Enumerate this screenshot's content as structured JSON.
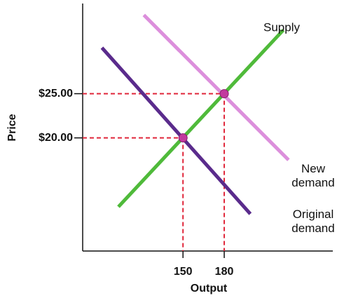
{
  "chart_data": {
    "type": "line",
    "xlabel": "Output",
    "ylabel": "Price",
    "xlim": [
      77,
      259
    ],
    "ylim": [
      7.2,
      35.2
    ],
    "xticks": [
      150,
      180
    ],
    "yticks": [
      {
        "value": 20,
        "label": "$20.00"
      },
      {
        "value": 25,
        "label": "$25.00"
      }
    ],
    "series": [
      {
        "name": "Supply",
        "color": "#4fba3a",
        "x": [
          103,
          223
        ],
        "values": [
          12.2,
          32.2
        ]
      },
      {
        "name": "Original demand",
        "color": "#5a2b8c",
        "x": [
          91,
          199
        ],
        "values": [
          30.2,
          11.4
        ]
      },
      {
        "name": "New demand",
        "color": "#dc8fdc",
        "x": [
          121.5,
          226.8
        ],
        "values": [
          33.9,
          17.5
        ]
      }
    ],
    "equilibria": {
      "color": "#c23a9e",
      "guide_color": "#e0263a",
      "x": [
        150,
        180
      ],
      "values": [
        20,
        25
      ]
    }
  }
}
